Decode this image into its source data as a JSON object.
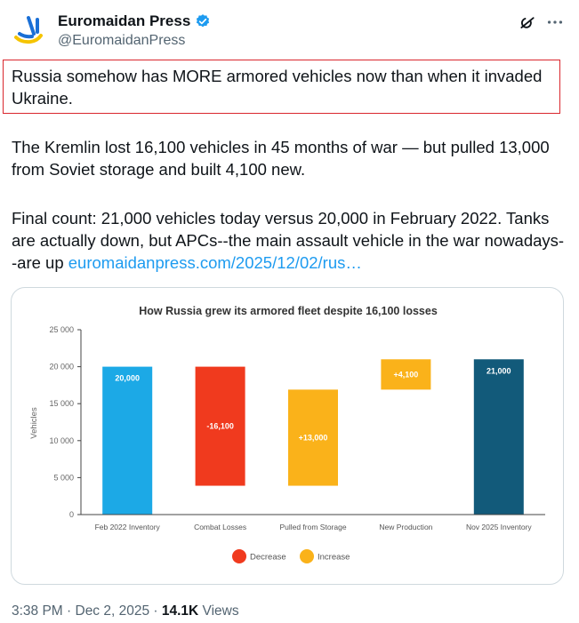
{
  "author": {
    "name": "Euromaidan Press",
    "handle": "@EuromaidanPress"
  },
  "tweet": {
    "highlight_text": "Russia somehow has MORE armored vehicles now than when it invaded Ukraine.",
    "paragraph2": "The Kremlin lost 16,100 vehicles in 45 months of war — but pulled 13,000 from Soviet storage and built 4,100 new.",
    "paragraph3": "Final count: 21,000 vehicles today versus 20,000 in February 2022. Tanks are actually down, but APCs--the main assault vehicle in the war nowadays--are up",
    "link_text": "euromaidanpress.com/2025/12/02/rus…"
  },
  "colors": {
    "inventory_feb": "#1ca9e6",
    "decrease": "#f03a1e",
    "increase": "#fab21a",
    "inventory_nov": "#125a7a",
    "verified": "#1d9bf0",
    "highlight_border": "#d9262d"
  },
  "chart_data": {
    "type": "bar",
    "subtype": "waterfall",
    "title": "How Russia grew its armored fleet despite 16,100 losses",
    "ylabel": "Vehicles",
    "xlabel": "",
    "ylim": [
      0,
      25000
    ],
    "yticks": [
      0,
      5000,
      10000,
      15000,
      20000,
      25000
    ],
    "ytick_labels": [
      "0",
      "5 000",
      "10 000",
      "15 000",
      "20 000",
      "25 000"
    ],
    "grid": false,
    "legend_position": "bottom",
    "legend": [
      {
        "label": "Decrease",
        "color": "#f03a1e"
      },
      {
        "label": "Increase",
        "color": "#fab21a"
      }
    ],
    "categories": [
      "Feb 2022 Inventory",
      "Combat Losses",
      "Pulled from Storage",
      "New Production",
      "Nov 2025 Inventory"
    ],
    "bars": [
      {
        "category": "Feb 2022 Inventory",
        "start": 0,
        "end": 20000,
        "label": "20,000",
        "kind": "total"
      },
      {
        "category": "Combat Losses",
        "start": 20000,
        "end": 3900,
        "label": "-16,100",
        "kind": "decrease"
      },
      {
        "category": "Pulled from Storage",
        "start": 3900,
        "end": 16900,
        "label": "+13,000",
        "kind": "increase"
      },
      {
        "category": "New Production",
        "start": 16900,
        "end": 21000,
        "label": "+4,100",
        "kind": "increase"
      },
      {
        "category": "Nov 2025 Inventory",
        "start": 0,
        "end": 21000,
        "label": "21,000",
        "kind": "total_final"
      }
    ]
  },
  "footer": {
    "time": "3:38 PM · Dec 2, 2025 · ",
    "views_count": "14.1K",
    "views_label": " Views"
  }
}
